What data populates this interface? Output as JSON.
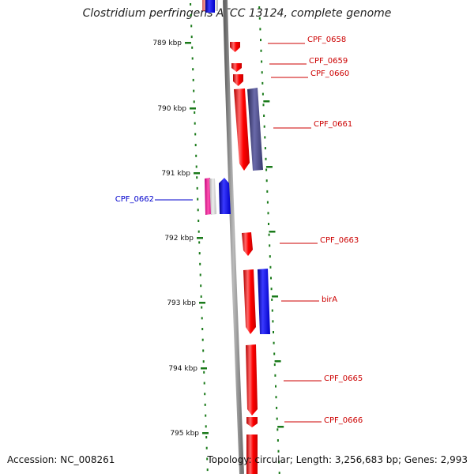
{
  "title": "Clostridium perfringens ATCC 13124, complete genome",
  "footer": {
    "accession": "Accession: NC_008261",
    "topology": "Topology: circular; Length: 3,256,683 bp; Genes: 2,993"
  },
  "colors": {
    "forward_gene": "#ff0000",
    "reverse_gene": "#0000ff",
    "label_forward": "#cc0000",
    "label_reverse": "#0000cc",
    "tick": "#1a7a1a",
    "backbone": "#888888"
  },
  "ticks": [
    {
      "label": "789 kbp",
      "kbp": 789
    },
    {
      "label": "790 kbp",
      "kbp": 790
    },
    {
      "label": "791 kbp",
      "kbp": 791
    },
    {
      "label": "792 kbp",
      "kbp": 792
    },
    {
      "label": "793 kbp",
      "kbp": 793
    },
    {
      "label": "794 kbp",
      "kbp": 794
    },
    {
      "label": "795 kbp",
      "kbp": 795
    }
  ],
  "labels": [
    {
      "text": "CPF_0658",
      "strand": "forward"
    },
    {
      "text": "CPF_0659",
      "strand": "forward"
    },
    {
      "text": "CPF_0660",
      "strand": "forward"
    },
    {
      "text": "CPF_0661",
      "strand": "forward"
    },
    {
      "text": "CPF_0662",
      "strand": "reverse"
    },
    {
      "text": "CPF_0663",
      "strand": "forward"
    },
    {
      "text": "birA",
      "strand": "forward"
    },
    {
      "text": "CPF_0665",
      "strand": "forward"
    },
    {
      "text": "CPF_0666",
      "strand": "forward"
    }
  ]
}
